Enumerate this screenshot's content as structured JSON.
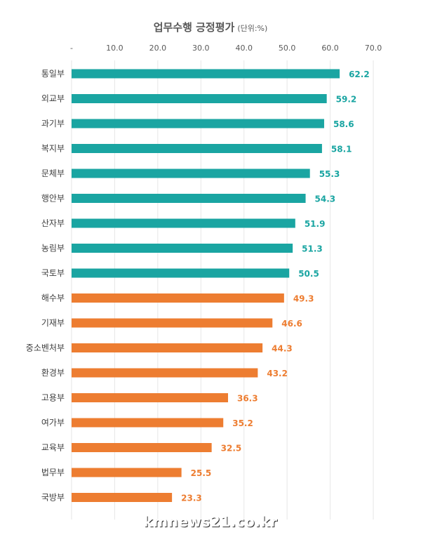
{
  "chart_data": {
    "type": "bar",
    "orientation": "horizontal",
    "title": "업무수행 긍정평가",
    "title_unit": "(단위:%)",
    "xlim": [
      0,
      70
    ],
    "ticks": [
      "-",
      "10.0",
      "20.0",
      "30.0",
      "40.0",
      "50.0",
      "60.0",
      "70.0"
    ],
    "tick_values": [
      0,
      10,
      20,
      30,
      40,
      50,
      60,
      70
    ],
    "grid": true,
    "categories": [
      "통일부",
      "외교부",
      "과기부",
      "복지부",
      "문체부",
      "행안부",
      "산자부",
      "농림부",
      "국토부",
      "해수부",
      "기재부",
      "중소벤처부",
      "환경부",
      "고용부",
      "여가부",
      "교육부",
      "법무부",
      "국방부"
    ],
    "values": [
      62.2,
      59.2,
      58.6,
      58.1,
      55.3,
      54.3,
      51.9,
      51.3,
      50.5,
      49.3,
      46.6,
      44.3,
      43.2,
      36.3,
      35.2,
      32.5,
      25.5,
      23.3
    ],
    "value_labels": [
      "62.2",
      "59.2",
      "58.6",
      "58.1",
      "55.3",
      "54.3",
      "51.9",
      "51.3",
      "50.5",
      "49.3",
      "46.6",
      "44.3",
      "43.2",
      "36.3",
      "35.2",
      "32.5",
      "25.5",
      "23.3"
    ],
    "groups": [
      "teal",
      "teal",
      "teal",
      "teal",
      "teal",
      "teal",
      "teal",
      "teal",
      "teal",
      "orange",
      "orange",
      "orange",
      "orange",
      "orange",
      "orange",
      "orange",
      "orange",
      "orange"
    ],
    "colors": {
      "teal": "#1aa5a2",
      "orange": "#ed7d31"
    }
  },
  "watermark": "kmnews21.co.kr"
}
